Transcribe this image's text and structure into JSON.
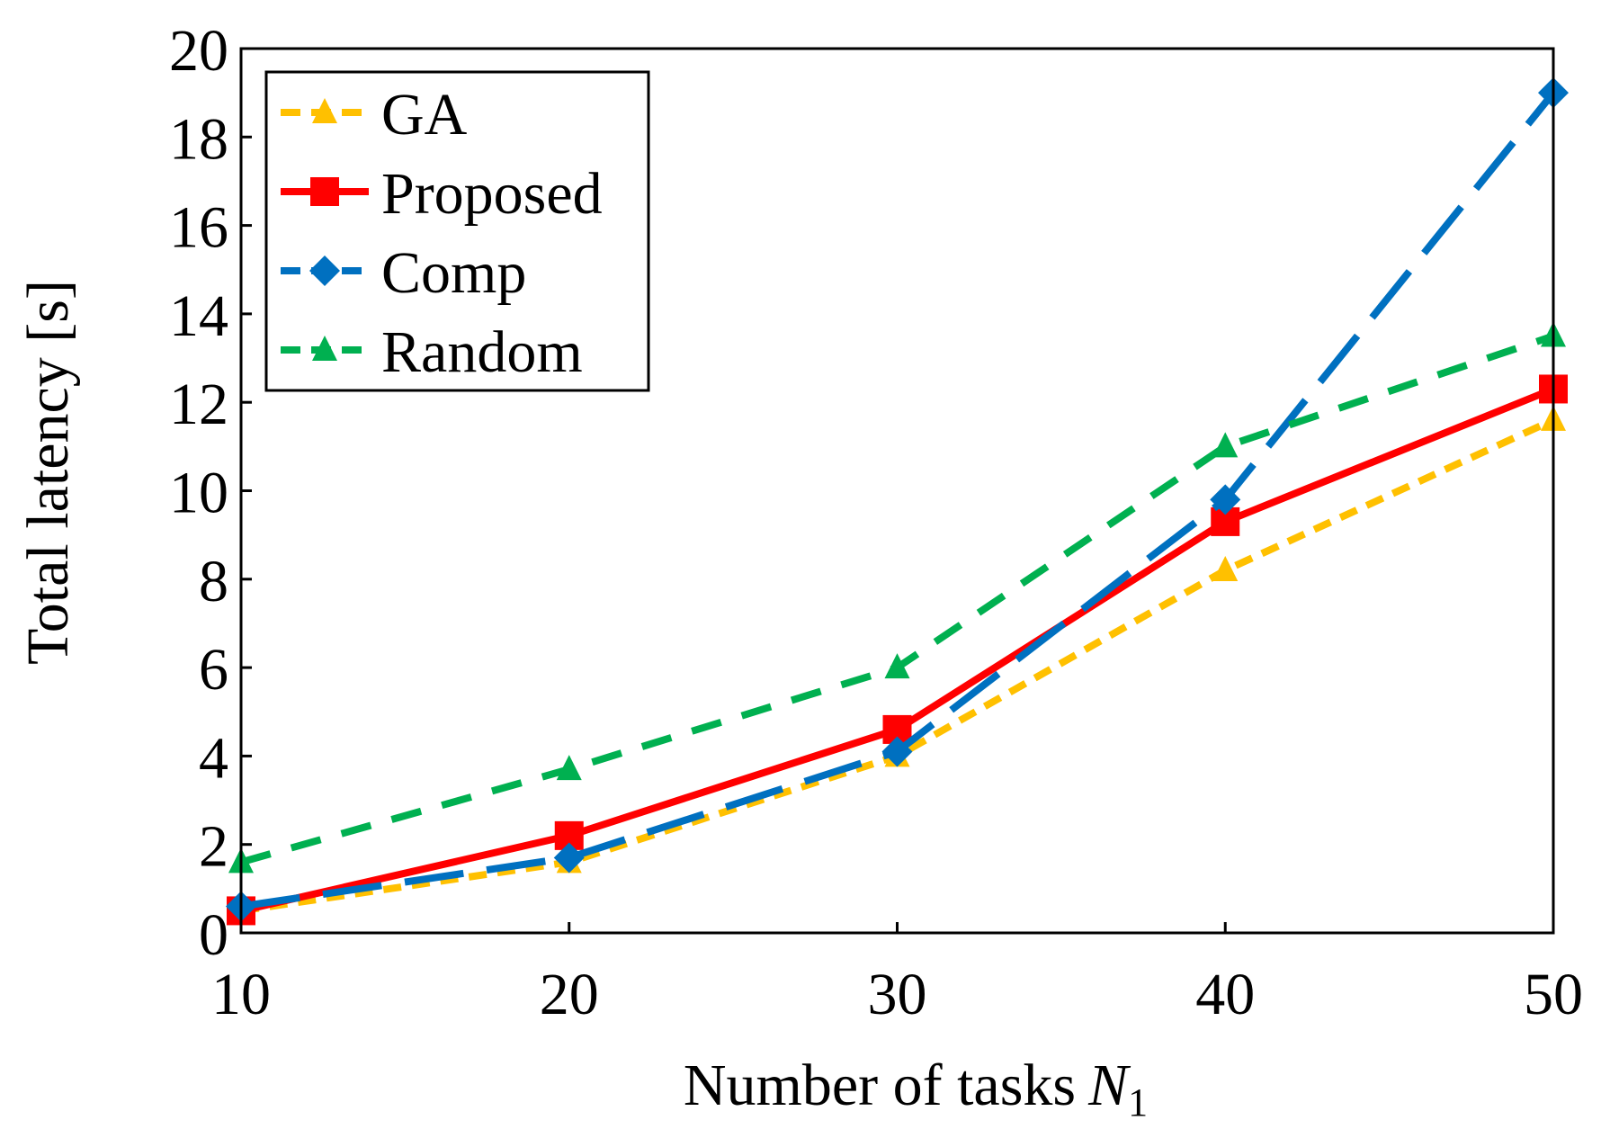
{
  "chart_data": {
    "type": "line",
    "title": "",
    "xlabel": "Number of tasks",
    "xlabel_symbol": "N",
    "xlabel_subscript": "1",
    "ylabel": "Total latency [s]",
    "x": [
      10,
      20,
      30,
      40,
      50
    ],
    "xlim": [
      10,
      50
    ],
    "ylim": [
      0,
      20
    ],
    "xticks": [
      "10",
      "20",
      "30",
      "40",
      "50"
    ],
    "yticks": [
      "0",
      "2",
      "4",
      "6",
      "8",
      "10",
      "12",
      "14",
      "16",
      "18",
      "20"
    ],
    "grid": false,
    "legend_position": "top-left",
    "series": [
      {
        "name": "GA",
        "values": [
          0.5,
          1.6,
          4.0,
          8.2,
          11.6
        ],
        "color": "#FFC000",
        "marker": "triangle",
        "dash": "short"
      },
      {
        "name": "Proposed",
        "values": [
          0.5,
          2.2,
          4.6,
          9.3,
          12.3
        ],
        "color": "#FF0000",
        "marker": "square",
        "dash": "solid"
      },
      {
        "name": "Comp",
        "values": [
          0.6,
          1.7,
          4.1,
          9.8,
          19.0
        ],
        "color": "#0070C0",
        "marker": "diamond",
        "dash": "long"
      },
      {
        "name": "Random",
        "values": [
          1.6,
          3.7,
          6.0,
          11.0,
          13.5
        ],
        "color": "#00B050",
        "marker": "triangle",
        "dash": "medium"
      }
    ]
  }
}
